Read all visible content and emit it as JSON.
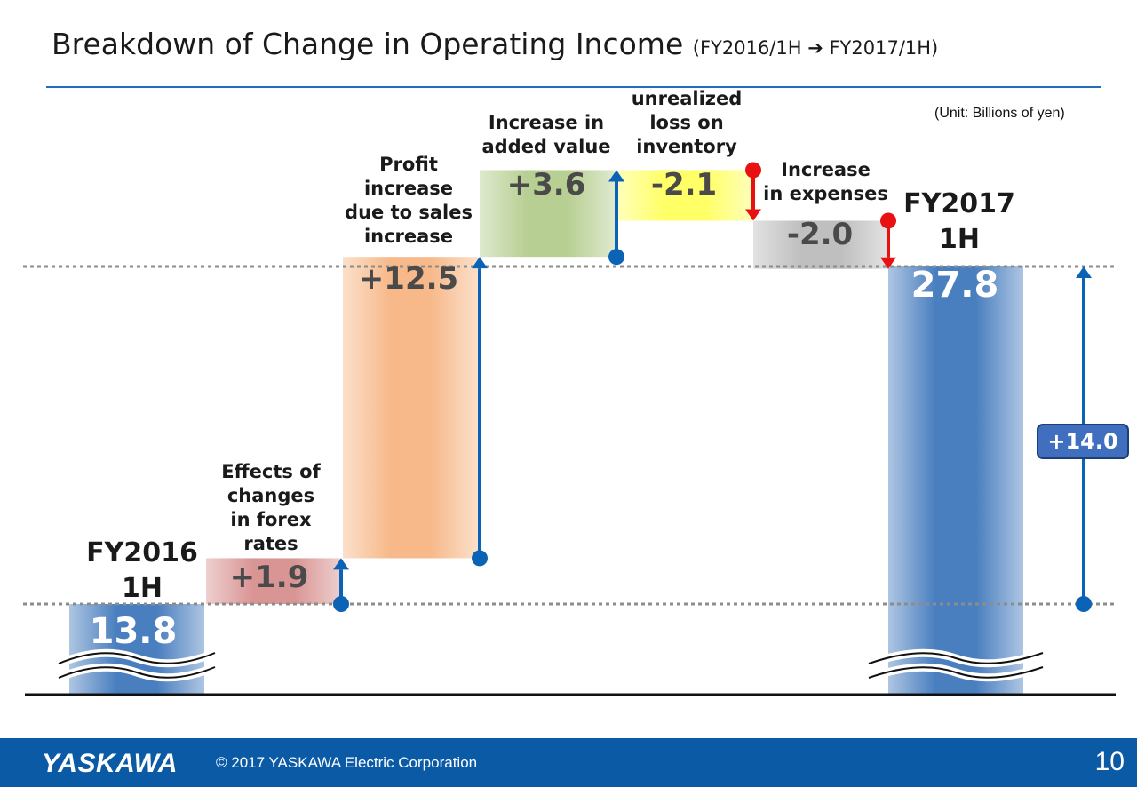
{
  "slide": {
    "title_main": "Breakdown of Change in Operating Income",
    "title_sub": "(FY2016/1H ➔ FY2017/1H)",
    "unit_note": "(Unit: Billions of yen)"
  },
  "chart_data": {
    "type": "waterfall",
    "title": "Breakdown of Change in Operating Income",
    "unit": "Billions of yen",
    "start": {
      "label": "FY2016 1H",
      "value": 13.8,
      "value_text": "13.8"
    },
    "end": {
      "label": "FY2017 1H",
      "value": 27.8,
      "value_text": "27.8"
    },
    "steps": [
      {
        "name": "Effects of changes in forex rates",
        "delta": 1.9,
        "text": "+1.9"
      },
      {
        "name": "Profit increase due to sales increase",
        "delta": 12.5,
        "text": "+12.5"
      },
      {
        "name": "Increase in added value",
        "delta": 3.6,
        "text": "+3.6"
      },
      {
        "name": "unrealized loss on inventory",
        "delta": -2.1,
        "text": "-2.1"
      },
      {
        "name": "Increase in expenses",
        "delta": -2.0,
        "text": "-2.0"
      }
    ],
    "total_change": {
      "delta": 14.0,
      "text": "+14.0"
    },
    "colors": {
      "start_end": "#4a7fbf",
      "forex": "#d99494",
      "sales": "#f7b98a",
      "added_value": "#b7cf92",
      "unrealized": "#ffff66",
      "expenses": "#bfbfbf",
      "increase_arrow": "#0b63b5",
      "decrease_arrow": "#e81010"
    }
  },
  "labels": {
    "start_top": "FY2016",
    "start_bottom": "1H",
    "end_top": "FY2017",
    "end_bottom": "1H",
    "forex_lines": [
      "Effects of",
      "changes",
      "in forex",
      "rates"
    ],
    "sales_lines": [
      "Profit",
      "increase",
      "due to sales",
      "increase"
    ],
    "added_lines": [
      "Increase in",
      "added value"
    ],
    "unrealized_lines": [
      "unrealized",
      "loss on",
      "inventory"
    ],
    "expenses_lines": [
      "Increase",
      "in expenses"
    ]
  },
  "footer": {
    "logo": "YASKAWA",
    "copyright": "© 2017 YASKAWA Electric Corporation",
    "page_number": "10"
  }
}
